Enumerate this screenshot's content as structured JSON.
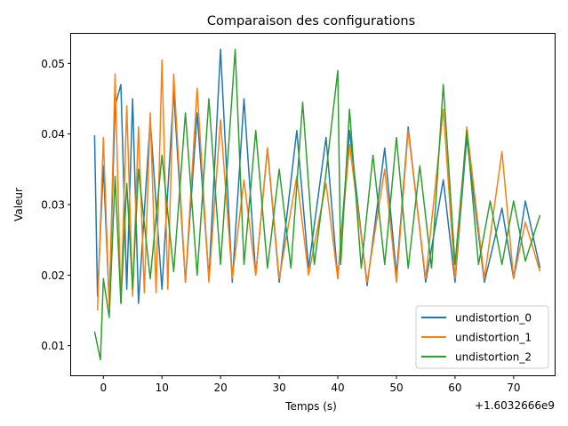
{
  "chart_data": {
    "type": "line",
    "title": "Comparaison des configurations",
    "xlabel": "Temps (s)",
    "ylabel": "Valeur",
    "x_offset_label": "+1.6032666e9",
    "xlim": [
      -5.5,
      77
    ],
    "ylim": [
      0.0058,
      0.0542
    ],
    "x_ticks": [
      0,
      10,
      20,
      30,
      40,
      50,
      60,
      70
    ],
    "y_ticks": [
      0.01,
      0.02,
      0.03,
      0.04,
      0.05
    ],
    "y_tick_labels": [
      "0.01",
      "0.02",
      "0.03",
      "0.04",
      "0.05"
    ],
    "grid": false,
    "legend_position": "lower-right",
    "colors": [
      "#1f77b4",
      "#ff7f0e",
      "#2ca02c"
    ],
    "series": [
      {
        "name": "undistortion_0",
        "x": [
          -1.5,
          -1,
          0,
          1,
          2,
          3,
          4,
          5,
          6,
          8,
          10,
          12,
          14,
          16,
          18,
          20,
          22,
          24,
          26,
          28,
          30,
          33,
          35,
          38,
          40,
          42,
          45,
          48,
          50,
          52,
          55,
          58,
          60,
          62,
          65,
          68,
          70,
          72,
          74.5
        ],
        "y": [
          0.0398,
          0.017,
          0.0355,
          0.016,
          0.044,
          0.047,
          0.018,
          0.045,
          0.016,
          0.042,
          0.018,
          0.046,
          0.019,
          0.043,
          0.0195,
          0.052,
          0.019,
          0.045,
          0.02,
          0.038,
          0.019,
          0.0405,
          0.021,
          0.0395,
          0.0195,
          0.0405,
          0.0185,
          0.038,
          0.02,
          0.041,
          0.019,
          0.0335,
          0.019,
          0.0395,
          0.019,
          0.0295,
          0.0195,
          0.0305,
          0.021
        ]
      },
      {
        "name": "undistortion_1",
        "x": [
          -1,
          0,
          1,
          2,
          3,
          4,
          5,
          6,
          7,
          8,
          9,
          10,
          11,
          12,
          14,
          16,
          18,
          20,
          22,
          24,
          26,
          28,
          30,
          33,
          35,
          38,
          40,
          42,
          45,
          48,
          50,
          52,
          55,
          58,
          60,
          62,
          65,
          68,
          70,
          72,
          74.5
        ],
        "y": [
          0.015,
          0.0395,
          0.0155,
          0.0485,
          0.016,
          0.044,
          0.017,
          0.041,
          0.0175,
          0.043,
          0.0175,
          0.0505,
          0.018,
          0.0485,
          0.019,
          0.0465,
          0.019,
          0.042,
          0.0195,
          0.0335,
          0.02,
          0.038,
          0.0195,
          0.034,
          0.02,
          0.033,
          0.0195,
          0.0385,
          0.019,
          0.035,
          0.019,
          0.0405,
          0.0195,
          0.0435,
          0.0195,
          0.041,
          0.0195,
          0.0375,
          0.0195,
          0.0275,
          0.0205
        ]
      },
      {
        "name": "undistortion_2",
        "x": [
          -1.5,
          -0.5,
          0,
          1,
          2,
          3,
          4,
          5,
          6,
          8,
          10,
          12,
          14,
          16,
          18,
          20,
          22.5,
          24,
          26,
          28,
          30,
          32,
          34,
          36,
          38,
          40,
          40.5,
          42,
          44,
          46,
          48,
          50,
          52,
          54,
          56,
          58,
          60,
          62,
          64,
          66,
          68,
          70,
          72,
          74.5
        ],
        "y": [
          0.012,
          0.008,
          0.0195,
          0.014,
          0.034,
          0.016,
          0.033,
          0.018,
          0.035,
          0.0195,
          0.037,
          0.0205,
          0.043,
          0.02,
          0.045,
          0.0215,
          0.052,
          0.0215,
          0.0405,
          0.021,
          0.035,
          0.021,
          0.0445,
          0.0215,
          0.0345,
          0.049,
          0.0215,
          0.0435,
          0.021,
          0.037,
          0.0215,
          0.0395,
          0.021,
          0.0355,
          0.021,
          0.047,
          0.0215,
          0.0405,
          0.0215,
          0.0305,
          0.0215,
          0.0305,
          0.022,
          0.0285
        ]
      }
    ]
  }
}
